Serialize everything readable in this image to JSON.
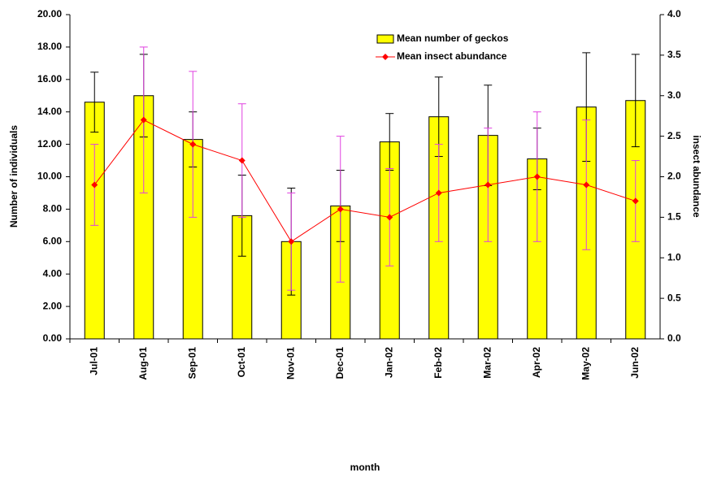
{
  "chart_data": {
    "type": "bar_line",
    "x_label": "month",
    "y_label": "Number of individuals",
    "y2_label": "insect abundance",
    "categories": [
      "Jul-01",
      "Aug-01",
      "Sep-01",
      "Oct-01",
      "Nov-01",
      "Dec-01",
      "Jan-02",
      "Feb-02",
      "Mar-02",
      "Apr-02",
      "May-02",
      "Jun-02"
    ],
    "series": [
      {
        "name": "Mean number of geckos",
        "type": "bar",
        "color": "#ffff00",
        "error_color": "#000000",
        "values": [
          14.6,
          15.0,
          12.3,
          7.6,
          6.0,
          8.2,
          12.15,
          13.7,
          12.55,
          11.1,
          14.3,
          14.7
        ],
        "errors": [
          1.85,
          2.55,
          1.7,
          2.5,
          3.3,
          2.2,
          1.75,
          2.45,
          3.1,
          1.9,
          3.35,
          2.85
        ]
      },
      {
        "name": "Mean insect abundance",
        "type": "line",
        "axis": "y2",
        "color": "#ff0000",
        "error_color": "#e040e0",
        "values": [
          1.9,
          2.7,
          2.4,
          2.2,
          1.2,
          1.6,
          1.5,
          1.8,
          1.9,
          2.0,
          1.9,
          1.7
        ],
        "errors": [
          0.5,
          0.9,
          0.9,
          0.7,
          0.6,
          0.9,
          0.6,
          0.6,
          0.7,
          0.8,
          0.8,
          0.5
        ]
      }
    ],
    "ylim": [
      0,
      20
    ],
    "yticks": [
      {
        "value": 0,
        "label": "0.00"
      },
      {
        "value": 2,
        "label": "2.00"
      },
      {
        "value": 4,
        "label": "4.00"
      },
      {
        "value": 6,
        "label": "6.00"
      },
      {
        "value": 8,
        "label": "8.00"
      },
      {
        "value": 10,
        "label": "10.00"
      },
      {
        "value": 12,
        "label": "12.00"
      },
      {
        "value": 14,
        "label": "14.00"
      },
      {
        "value": 16,
        "label": "16.00"
      },
      {
        "value": 18,
        "label": "18.00"
      },
      {
        "value": 20,
        "label": "20.00"
      }
    ],
    "y2lim": [
      0,
      4
    ],
    "y2ticks": [
      {
        "value": 0,
        "label": "0.0"
      },
      0.5,
      {
        "value": 1,
        "label": "1.0"
      },
      1.5,
      {
        "value": 2,
        "label": "2.0"
      },
      2.5,
      {
        "value": 3,
        "label": "3.0"
      },
      3.5,
      {
        "value": 4,
        "label": "4.0"
      }
    ],
    "grid": false,
    "legend": "top"
  }
}
